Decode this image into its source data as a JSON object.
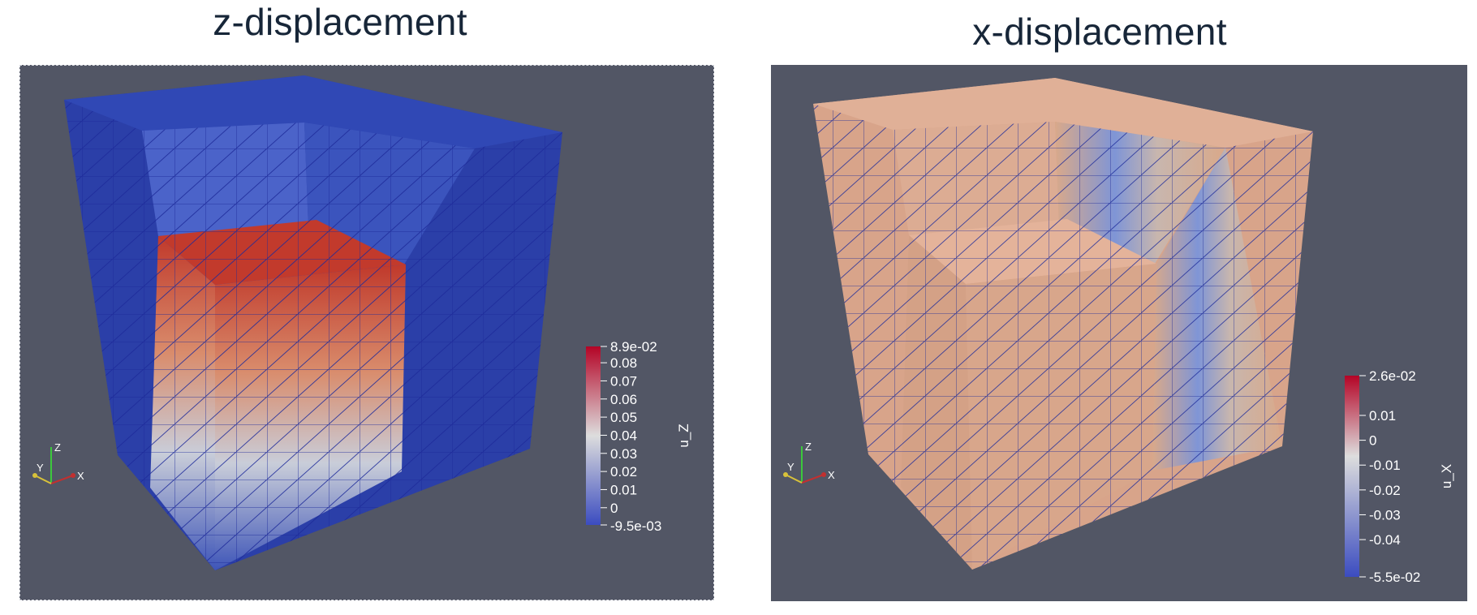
{
  "left_panel": {
    "title": "z-displacement",
    "colorbar": {
      "variable": "u_Z",
      "max_label": "8.9e-02",
      "min_label": "-9.5e-03",
      "range": [
        -0.0095,
        0.089
      ],
      "ticks": [
        "0.08",
        "0.07",
        "0.06",
        "0.05",
        "0.04",
        "0.03",
        "0.02",
        "0.01",
        "0"
      ],
      "tick_values": [
        0.08,
        0.07,
        0.06,
        0.05,
        0.04,
        0.03,
        0.02,
        0.01,
        0
      ]
    },
    "axes": {
      "z": "Z",
      "y": "Y",
      "x": "X"
    }
  },
  "right_panel": {
    "title": "x-displacement",
    "colorbar": {
      "variable": "u_X",
      "max_label": "2.6e-02",
      "min_label": "-5.5e-02",
      "range": [
        -0.055,
        0.026
      ],
      "ticks": [
        "0.01",
        "0",
        "-0.01",
        "-0.02",
        "-0.03",
        "-0.04"
      ],
      "tick_values": [
        0.01,
        0,
        -0.01,
        -0.02,
        -0.03,
        -0.04
      ]
    },
    "axes": {
      "z": "Z",
      "y": "Y",
      "x": "X"
    }
  },
  "colors": {
    "background": "#525665",
    "mesh_line": "#1d2a9a",
    "low": "#3b4cc0",
    "mid": "#dddddd",
    "high": "#b40426"
  }
}
